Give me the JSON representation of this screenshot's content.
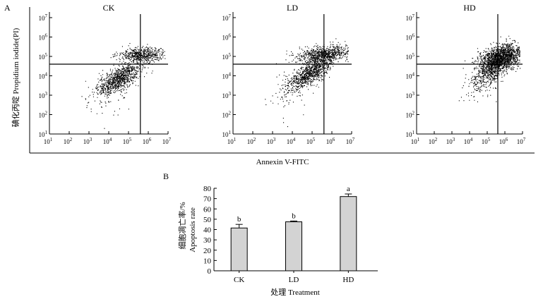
{
  "panel_a": {
    "letter": "A",
    "ylabel": "碘化丙啶 Propidium iodide(PI)",
    "xlabel": "Annexin V-FITC",
    "y_ticks": [
      {
        "base": "10",
        "exp": "7",
        "v": 7
      },
      {
        "base": "10",
        "exp": "6",
        "v": 6
      },
      {
        "base": "10",
        "exp": "5",
        "v": 5
      },
      {
        "base": "10",
        "exp": "4",
        "v": 4
      },
      {
        "base": "10",
        "exp": "3",
        "v": 3
      },
      {
        "base": "10",
        "exp": "2",
        "v": 2
      },
      {
        "base": "10",
        "exp": "1",
        "v": 1
      }
    ],
    "x_ticks": [
      {
        "base": "10",
        "exp": "1",
        "v": 1
      },
      {
        "base": "10",
        "exp": "2",
        "v": 2
      },
      {
        "base": "10",
        "exp": "3",
        "v": 3
      },
      {
        "base": "10",
        "exp": "4",
        "v": 4
      },
      {
        "base": "10",
        "exp": "5",
        "v": 5
      },
      {
        "base": "10",
        "exp": "6",
        "v": 6
      },
      {
        "base": "10",
        "exp": "7",
        "v": 7
      }
    ]
  },
  "panel_b": {
    "letter": "B",
    "ylabel_cn": "细胞凋亡率/%",
    "ylabel_en": "Apoptosis rate",
    "xlabel": "处理 Treatment"
  },
  "chart_data": [
    {
      "type": "scatter",
      "title": "CK",
      "x_scale": "log10",
      "y_scale": "log10",
      "xlim": [
        1,
        7
      ],
      "ylim": [
        1,
        7
      ],
      "gate": {
        "x": 5.6,
        "y": 4.6
      },
      "clusters": [
        {
          "x": 4.55,
          "y": 3.9,
          "sx": 0.55,
          "sy": 0.3,
          "n": 900,
          "tilt": 0.55
        },
        {
          "x": 5.7,
          "y": 5.1,
          "sx": 0.6,
          "sy": 0.18,
          "n": 550,
          "tilt": 0.0
        },
        {
          "x": 4.0,
          "y": 3.0,
          "sx": 0.6,
          "sy": 0.5,
          "n": 80,
          "tilt": 0.3
        }
      ]
    },
    {
      "type": "scatter",
      "title": "LD",
      "x_scale": "log10",
      "y_scale": "log10",
      "xlim": [
        1,
        7
      ],
      "ylim": [
        1,
        7
      ],
      "gate": {
        "x": 5.6,
        "y": 4.6
      },
      "clusters": [
        {
          "x": 4.9,
          "y": 4.15,
          "sx": 0.6,
          "sy": 0.3,
          "n": 900,
          "tilt": 0.6
        },
        {
          "x": 5.6,
          "y": 5.15,
          "sx": 0.75,
          "sy": 0.22,
          "n": 750,
          "tilt": 0.1
        },
        {
          "x": 4.0,
          "y": 3.2,
          "sx": 0.6,
          "sy": 0.5,
          "n": 70,
          "tilt": 0.3
        }
      ]
    },
    {
      "type": "scatter",
      "title": "HD",
      "x_scale": "log10",
      "y_scale": "log10",
      "xlim": [
        1,
        7
      ],
      "ylim": [
        1,
        7
      ],
      "gate": {
        "x": 5.6,
        "y": 4.6
      },
      "clusters": [
        {
          "x": 5.75,
          "y": 4.95,
          "sx": 0.6,
          "sy": 0.32,
          "n": 1500,
          "tilt": 0.2
        },
        {
          "x": 5.2,
          "y": 4.2,
          "sx": 0.6,
          "sy": 0.35,
          "n": 500,
          "tilt": 0.5
        },
        {
          "x": 4.6,
          "y": 3.5,
          "sx": 0.5,
          "sy": 0.5,
          "n": 60,
          "tilt": 0.3
        }
      ]
    },
    {
      "type": "bar",
      "categories": [
        "CK",
        "LD",
        "HD"
      ],
      "values": [
        41.5,
        47.5,
        72
      ],
      "errors": [
        3.5,
        0.8,
        2.5
      ],
      "significance": [
        "b",
        "b",
        "a"
      ],
      "ylim": [
        0,
        80
      ],
      "yticks": [
        0,
        10,
        20,
        30,
        40,
        50,
        60,
        70,
        80
      ],
      "xlabel": "处理 Treatment",
      "ylabel": "细胞凋亡率/% Apoptosis rate",
      "bar_color": "#d3d3d3"
    }
  ]
}
